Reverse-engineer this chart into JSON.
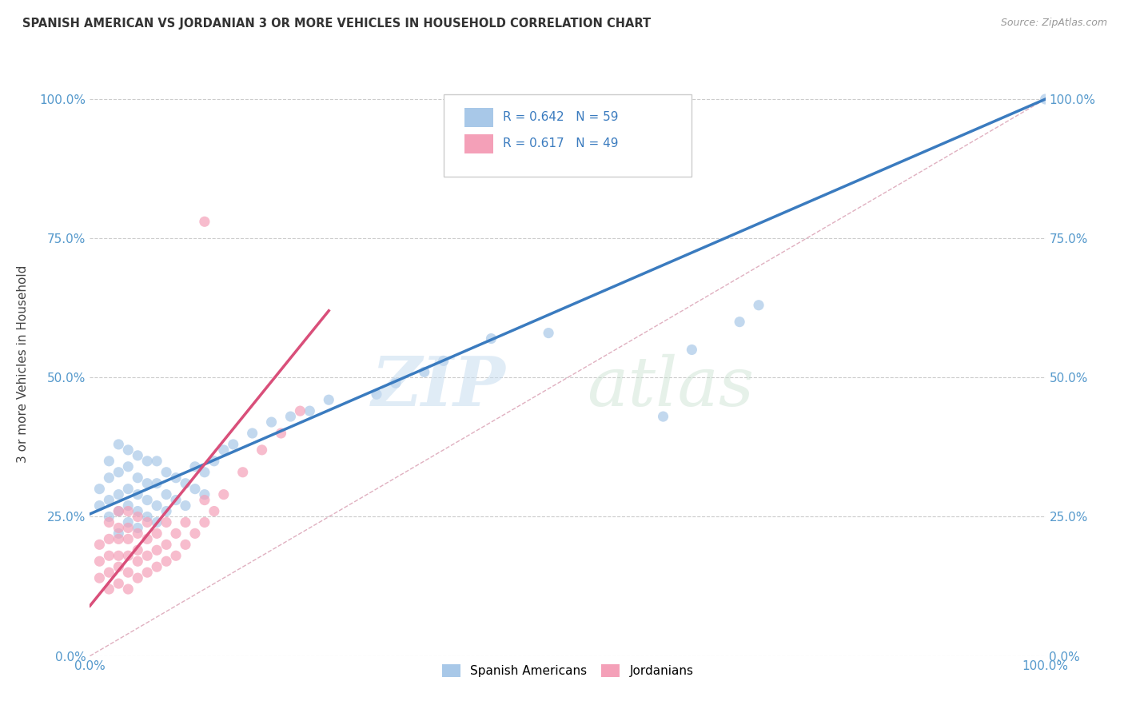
{
  "title": "SPANISH AMERICAN VS JORDANIAN 3 OR MORE VEHICLES IN HOUSEHOLD CORRELATION CHART",
  "source": "Source: ZipAtlas.com",
  "ylabel": "3 or more Vehicles in Household",
  "xlabel": "",
  "xlim": [
    0,
    1.0
  ],
  "ylim": [
    0.0,
    1.05
  ],
  "xtick_labels": [
    "0.0%",
    "100.0%"
  ],
  "ytick_labels": [
    "0.0%",
    "25.0%",
    "50.0%",
    "75.0%",
    "100.0%"
  ],
  "ytick_values": [
    0.0,
    0.25,
    0.5,
    0.75,
    1.0
  ],
  "legend_blue_r": "R = 0.642",
  "legend_blue_n": "N = 59",
  "legend_pink_r": "R = 0.617",
  "legend_pink_n": "N = 49",
  "legend_label_blue": "Spanish Americans",
  "legend_label_pink": "Jordanians",
  "blue_color": "#a8c8e8",
  "pink_color": "#f4a0b8",
  "blue_line_color": "#3a7bbf",
  "pink_line_color": "#d94f7a",
  "diag_line_color": "#e0b0c0",
  "grid_color": "#cccccc",
  "background_color": "#ffffff",
  "blue_scatter_x": [
    0.01,
    0.01,
    0.02,
    0.02,
    0.02,
    0.02,
    0.03,
    0.03,
    0.03,
    0.03,
    0.03,
    0.04,
    0.04,
    0.04,
    0.04,
    0.04,
    0.05,
    0.05,
    0.05,
    0.05,
    0.05,
    0.06,
    0.06,
    0.06,
    0.06,
    0.07,
    0.07,
    0.07,
    0.07,
    0.08,
    0.08,
    0.08,
    0.09,
    0.09,
    0.1,
    0.1,
    0.11,
    0.11,
    0.12,
    0.12,
    0.13,
    0.14,
    0.15,
    0.17,
    0.19,
    0.21,
    0.23,
    0.25,
    0.3,
    0.32,
    0.35,
    0.37,
    0.42,
    0.48,
    0.6,
    0.63,
    0.68,
    0.7,
    1.0
  ],
  "blue_scatter_y": [
    0.27,
    0.3,
    0.25,
    0.28,
    0.32,
    0.35,
    0.22,
    0.26,
    0.29,
    0.33,
    0.38,
    0.24,
    0.27,
    0.3,
    0.34,
    0.37,
    0.23,
    0.26,
    0.29,
    0.32,
    0.36,
    0.25,
    0.28,
    0.31,
    0.35,
    0.24,
    0.27,
    0.31,
    0.35,
    0.26,
    0.29,
    0.33,
    0.28,
    0.32,
    0.27,
    0.31,
    0.3,
    0.34,
    0.29,
    0.33,
    0.35,
    0.37,
    0.38,
    0.4,
    0.42,
    0.43,
    0.44,
    0.46,
    0.47,
    0.49,
    0.51,
    0.53,
    0.57,
    0.58,
    0.43,
    0.55,
    0.6,
    0.63,
    1.0
  ],
  "pink_scatter_x": [
    0.01,
    0.01,
    0.01,
    0.02,
    0.02,
    0.02,
    0.02,
    0.02,
    0.03,
    0.03,
    0.03,
    0.03,
    0.03,
    0.03,
    0.04,
    0.04,
    0.04,
    0.04,
    0.04,
    0.04,
    0.05,
    0.05,
    0.05,
    0.05,
    0.05,
    0.06,
    0.06,
    0.06,
    0.06,
    0.07,
    0.07,
    0.07,
    0.08,
    0.08,
    0.08,
    0.09,
    0.09,
    0.1,
    0.1,
    0.11,
    0.12,
    0.12,
    0.13,
    0.14,
    0.16,
    0.18,
    0.2,
    0.22,
    0.12
  ],
  "pink_scatter_y": [
    0.14,
    0.17,
    0.2,
    0.12,
    0.15,
    0.18,
    0.21,
    0.24,
    0.13,
    0.16,
    0.18,
    0.21,
    0.23,
    0.26,
    0.12,
    0.15,
    0.18,
    0.21,
    0.23,
    0.26,
    0.14,
    0.17,
    0.19,
    0.22,
    0.25,
    0.15,
    0.18,
    0.21,
    0.24,
    0.16,
    0.19,
    0.22,
    0.17,
    0.2,
    0.24,
    0.18,
    0.22,
    0.2,
    0.24,
    0.22,
    0.24,
    0.28,
    0.26,
    0.29,
    0.33,
    0.37,
    0.4,
    0.44,
    0.78
  ],
  "blue_line_x0": 0.0,
  "blue_line_y0": 0.255,
  "blue_line_x1": 1.0,
  "blue_line_y1": 1.0,
  "pink_line_x0": 0.0,
  "pink_line_y0": 0.09,
  "pink_line_x1": 0.25,
  "pink_line_y1": 0.62,
  "diag_line_x0": 0.0,
  "diag_line_y0": 0.0,
  "diag_line_x1": 1.0,
  "diag_line_y1": 1.0
}
